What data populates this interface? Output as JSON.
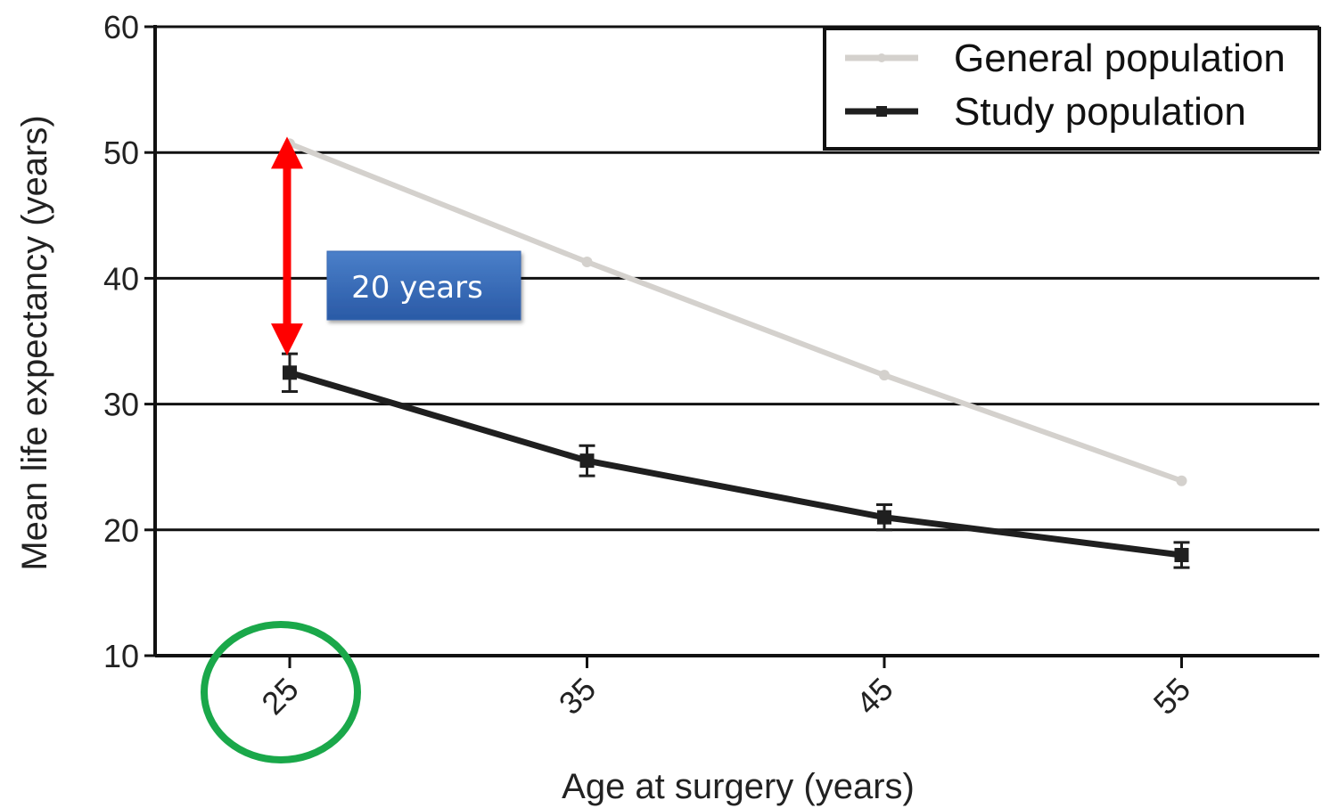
{
  "chart_data": {
    "type": "line",
    "x": [
      25,
      35,
      45,
      55
    ],
    "x_tick_labels": [
      "25",
      "35",
      "45",
      "55"
    ],
    "y_ticks": [
      "10",
      "20",
      "30",
      "40",
      "50",
      "60"
    ],
    "ylim": [
      10,
      60
    ],
    "xlabel": "Age at surgery (years)",
    "ylabel": "Mean life expectancy (years)",
    "grid": "horizontal",
    "legend_position": "top-right",
    "series": [
      {
        "name": "General population",
        "values": [
          50.7,
          41.3,
          32.3,
          23.9
        ],
        "color": "#d4d1cd",
        "marker": "circle"
      },
      {
        "name": "Study population",
        "values": [
          32.5,
          25.5,
          21.0,
          18.0
        ],
        "error": [
          1.5,
          1.2,
          1.0,
          1.0
        ],
        "color": "#1f1f1f",
        "marker": "square"
      }
    ],
    "annotations": {
      "gap_label": "20 years",
      "gap_arrow": {
        "x": 25,
        "from": 50.7,
        "to": 33.5,
        "color": "#ff0000"
      },
      "highlight_circle": {
        "x": 25,
        "color": "#1aa84a"
      }
    }
  }
}
